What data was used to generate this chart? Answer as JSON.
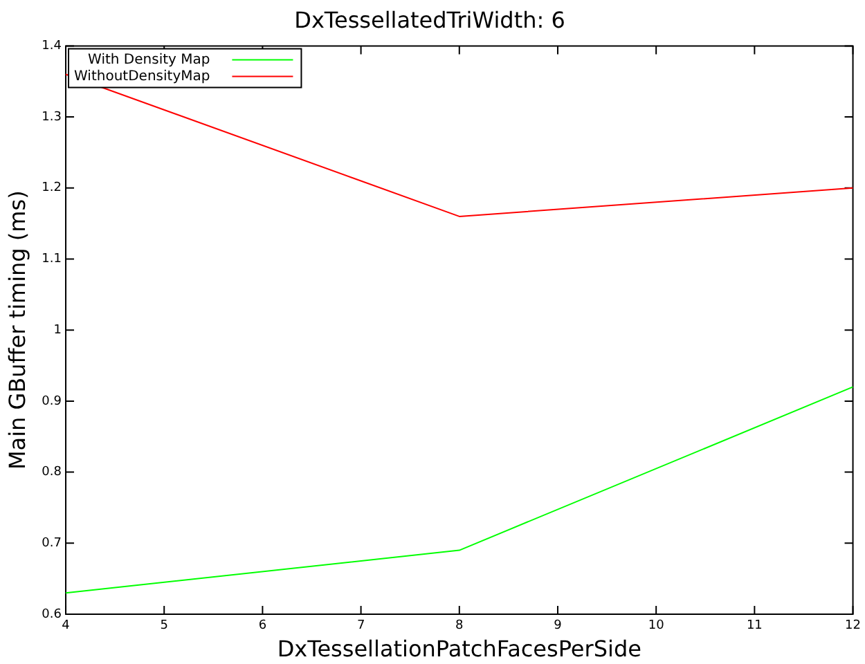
{
  "chart_data": {
    "type": "line",
    "title": "DxTessellatedTriWidth: 6",
    "xlabel": "DxTessellationPatchFacesPerSide",
    "ylabel": "Main GBuffer timing (ms)",
    "x": [
      4,
      8,
      12
    ],
    "series": [
      {
        "name": "With Density Map",
        "color": "#00ff00",
        "values": [
          0.63,
          0.69,
          0.92
        ]
      },
      {
        "name": "WithoutDensityMap",
        "color": "#ff0000",
        "values": [
          1.36,
          1.16,
          1.2
        ]
      }
    ],
    "xlim": [
      4,
      12
    ],
    "xticks": [
      4,
      5,
      6,
      7,
      8,
      9,
      10,
      11,
      12
    ],
    "ylim": [
      0.6,
      1.4
    ],
    "yticks": [
      0.6,
      0.7,
      0.8,
      0.9,
      1,
      1.1,
      1.2,
      1.3,
      1.4
    ],
    "grid": false,
    "legend": "top left",
    "marker": "none",
    "line_style": "solid"
  }
}
